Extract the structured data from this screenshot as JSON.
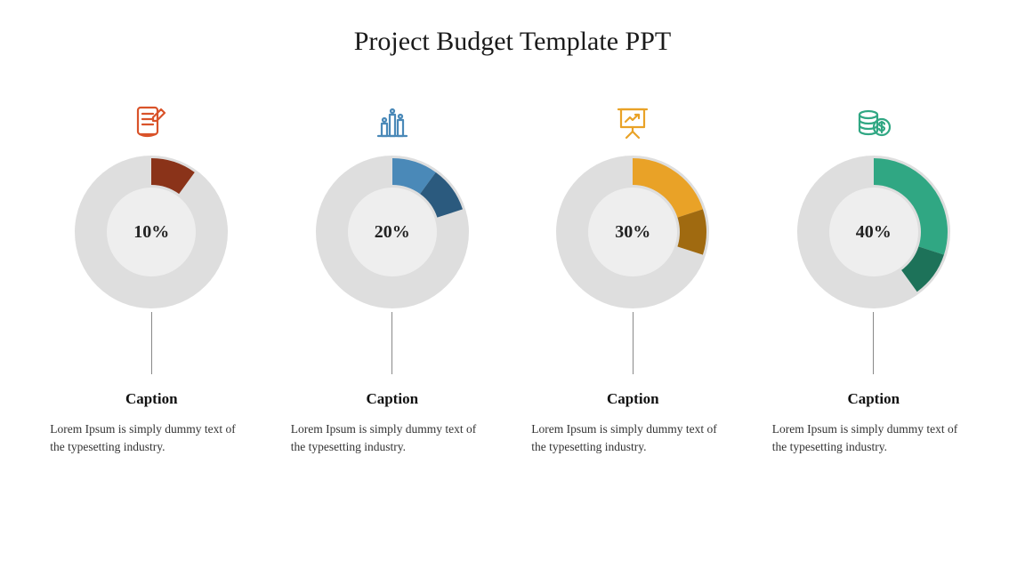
{
  "title": "Project Budget Template PPT",
  "ring_bg": "#dedede",
  "inner_bg": "#eeeeee",
  "percent_fontsize": 20,
  "title_fontsize": 30,
  "caption_fontsize": 17,
  "body_fontsize": 13.5,
  "items": [
    {
      "icon": "notepad-pencil",
      "color": "#d9532a",
      "color_dark": "#8a3319",
      "percent": 10,
      "percent_label": "10%",
      "caption": "Caption",
      "body": "Lorem Ipsum is simply dummy text of the typesetting industry."
    },
    {
      "icon": "bar-chart",
      "color": "#4a89b8",
      "color_dark": "#2b5a7e",
      "percent": 20,
      "percent_label": "20%",
      "caption": "Caption",
      "body": "Lorem Ipsum is simply dummy text of the typesetting industry."
    },
    {
      "icon": "presentation-arrow",
      "color": "#e9a227",
      "color_dark": "#a06a10",
      "percent": 30,
      "percent_label": "30%",
      "caption": "Caption",
      "body": "Lorem Ipsum is simply dummy text of the typesetting industry."
    },
    {
      "icon": "coins-dollar",
      "color": "#30a783",
      "color_dark": "#1d7259",
      "percent": 40,
      "percent_label": "40%",
      "caption": "Caption",
      "body": "Lorem Ipsum is simply dummy text of the typesetting industry."
    }
  ]
}
